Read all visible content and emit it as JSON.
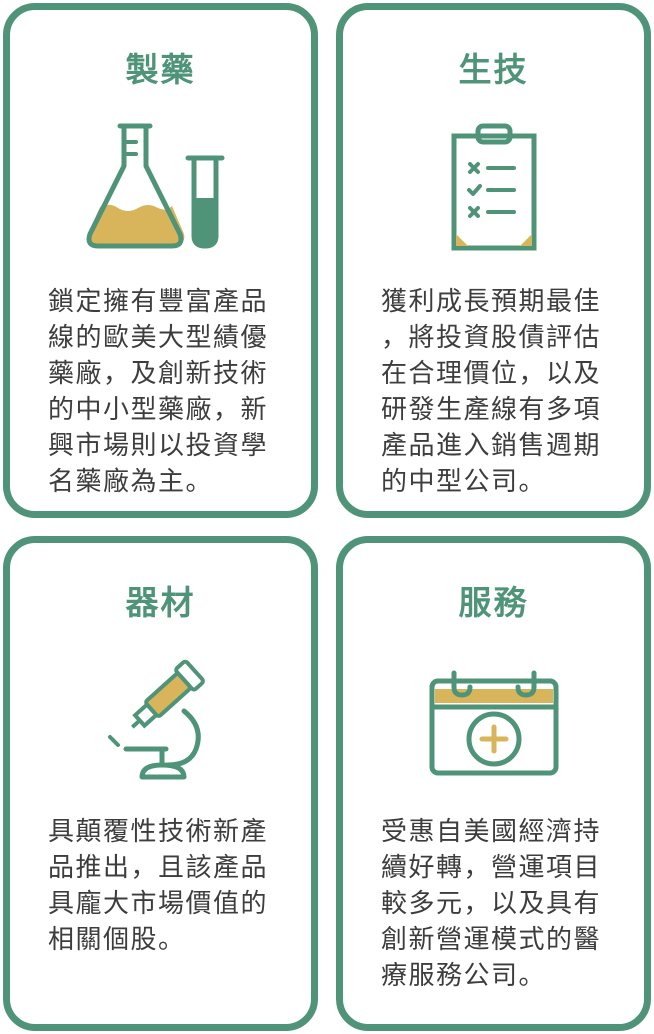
{
  "cards": [
    {
      "title": "製藥",
      "icon": "flask-icon",
      "lines": [
        "鎖定擁有豐富產品",
        "線的歐美大型績優",
        "藥廠，及創新技術",
        "的中小型藥廠，新",
        "興市場則以投資學",
        "名藥廠為主。"
      ]
    },
    {
      "title": "生技",
      "icon": "clipboard-checklist-icon",
      "lines": [
        "獲利成長預期最佳",
        "，將投資股債評估",
        "在合理價位，以及",
        "研發生產線有多項",
        "產品進入銷售週期",
        "的中型公司。"
      ]
    },
    {
      "title": "器材",
      "icon": "microscope-icon",
      "lines": [
        "具顛覆性技術新產",
        "品推出，且該產品",
        "具龐大市場價值的",
        "相關個股。"
      ]
    },
    {
      "title": "服務",
      "icon": "medical-kit-icon",
      "lines": [
        "受惠自美國經濟持",
        "續好轉，營運項目",
        "較多元，以及具有",
        "創新營運模式的醫",
        "療服務公司。"
      ]
    }
  ],
  "colors": {
    "accent": "#4f9478",
    "gold": "#d8b55b",
    "text": "#3d3d3d"
  }
}
